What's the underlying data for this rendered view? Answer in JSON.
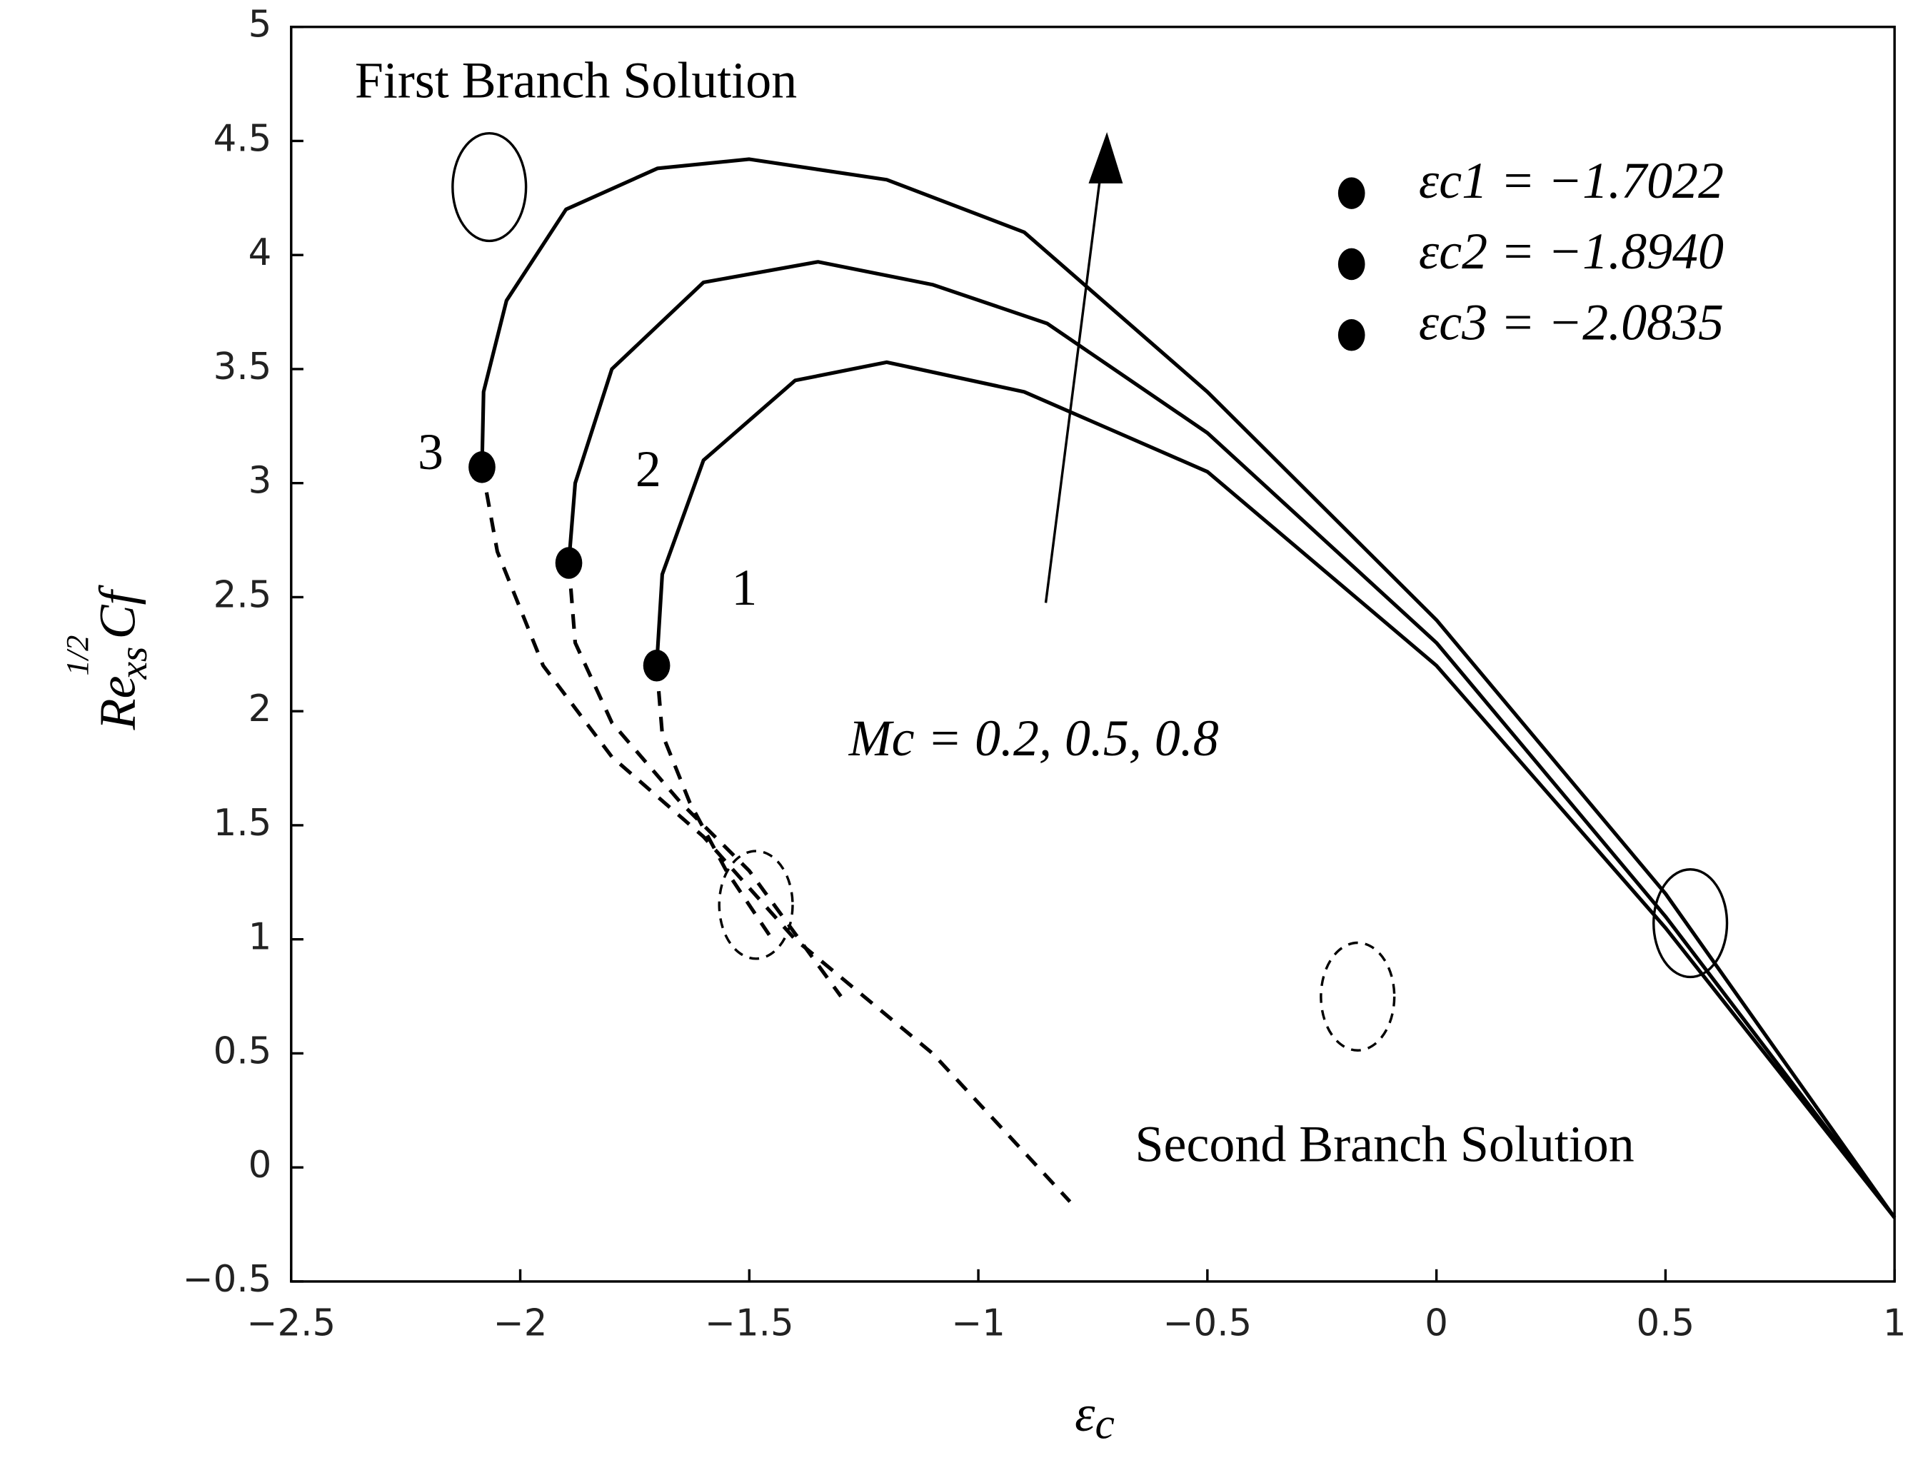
{
  "chart_data": {
    "type": "line",
    "xlabel": [
      "ε",
      "c"
    ],
    "ylabel": [
      "Re",
      "1/2",
      "xs",
      "Cf"
    ],
    "xlim": [
      -2.5,
      1
    ],
    "ylim": [
      -0.5,
      5
    ],
    "xticks": [
      {
        "value": -2.5,
        "label": "−2.5"
      },
      {
        "value": -2,
        "label": "−2"
      },
      {
        "value": -1.5,
        "label": "−1.5"
      },
      {
        "value": -1,
        "label": "−1"
      },
      {
        "value": -0.5,
        "label": "−0.5"
      },
      0,
      0.5,
      1
    ],
    "yticks": [
      {
        "value": -0.5,
        "label": "−0.5"
      },
      0,
      0.5,
      1,
      1.5,
      2,
      2.5,
      3,
      3.5,
      4,
      4.5,
      5
    ],
    "series": [
      {
        "style": "solid",
        "color": "#000000",
        "x": [
          -2.0835,
          -2.08,
          -2.03,
          -1.9,
          -1.7,
          -1.5,
          -1.2,
          -0.9,
          -0.5,
          0,
          0.5,
          1
        ],
        "values": [
          3.07,
          3.4,
          3.8,
          4.2,
          4.38,
          4.42,
          4.33,
          4.1,
          3.4,
          2.4,
          1.2,
          -0.22
        ]
      },
      {
        "style": "solid",
        "color": "#000000",
        "x": [
          -1.894,
          -1.88,
          -1.8,
          -1.6,
          -1.35,
          -1.1,
          -0.85,
          -0.5,
          0,
          0.5,
          1
        ],
        "values": [
          2.65,
          3.0,
          3.5,
          3.88,
          3.97,
          3.87,
          3.7,
          3.22,
          2.3,
          1.1,
          -0.22
        ]
      },
      {
        "style": "solid",
        "color": "#000000",
        "x": [
          -1.7022,
          -1.69,
          -1.6,
          -1.4,
          -1.2,
          -0.9,
          -0.5,
          0,
          0.5,
          1
        ],
        "values": [
          2.2,
          2.6,
          3.1,
          3.45,
          3.53,
          3.4,
          3.05,
          2.2,
          1.05,
          -0.22
        ]
      },
      {
        "style": "dashed",
        "color": "#000000",
        "x": [
          -2.0835,
          -2.05,
          -1.95,
          -1.8,
          -1.6,
          -1.4,
          -1.1,
          -0.8
        ],
        "values": [
          3.07,
          2.7,
          2.2,
          1.8,
          1.45,
          1.0,
          0.5,
          -0.15
        ]
      },
      {
        "style": "dashed",
        "color": "#000000",
        "x": [
          -1.894,
          -1.88,
          -1.8,
          -1.65,
          -1.5,
          -1.3
        ],
        "values": [
          2.65,
          2.3,
          1.95,
          1.6,
          1.3,
          0.75
        ]
      },
      {
        "style": "dashed",
        "color": "#000000",
        "x": [
          -1.7022,
          -1.69,
          -1.63,
          -1.55,
          -1.45
        ],
        "values": [
          2.2,
          1.9,
          1.6,
          1.3,
          1.0
        ]
      }
    ],
    "critical_points": [
      {
        "label": "εc1 = −1.7022",
        "x": -1.7022,
        "y": 2.2
      },
      {
        "label": "εc2 = −1.8940",
        "x": -1.894,
        "y": 2.65
      },
      {
        "label": "εc3 = −2.0835",
        "x": -2.0835,
        "y": 3.07
      }
    ],
    "annotations": {
      "first": "First Branch Solution",
      "second": "Second Branch Solution",
      "l1": "1",
      "l2": "2",
      "l3": "3",
      "mc": "Mc = 0.2, 0.5, 0.8"
    }
  }
}
